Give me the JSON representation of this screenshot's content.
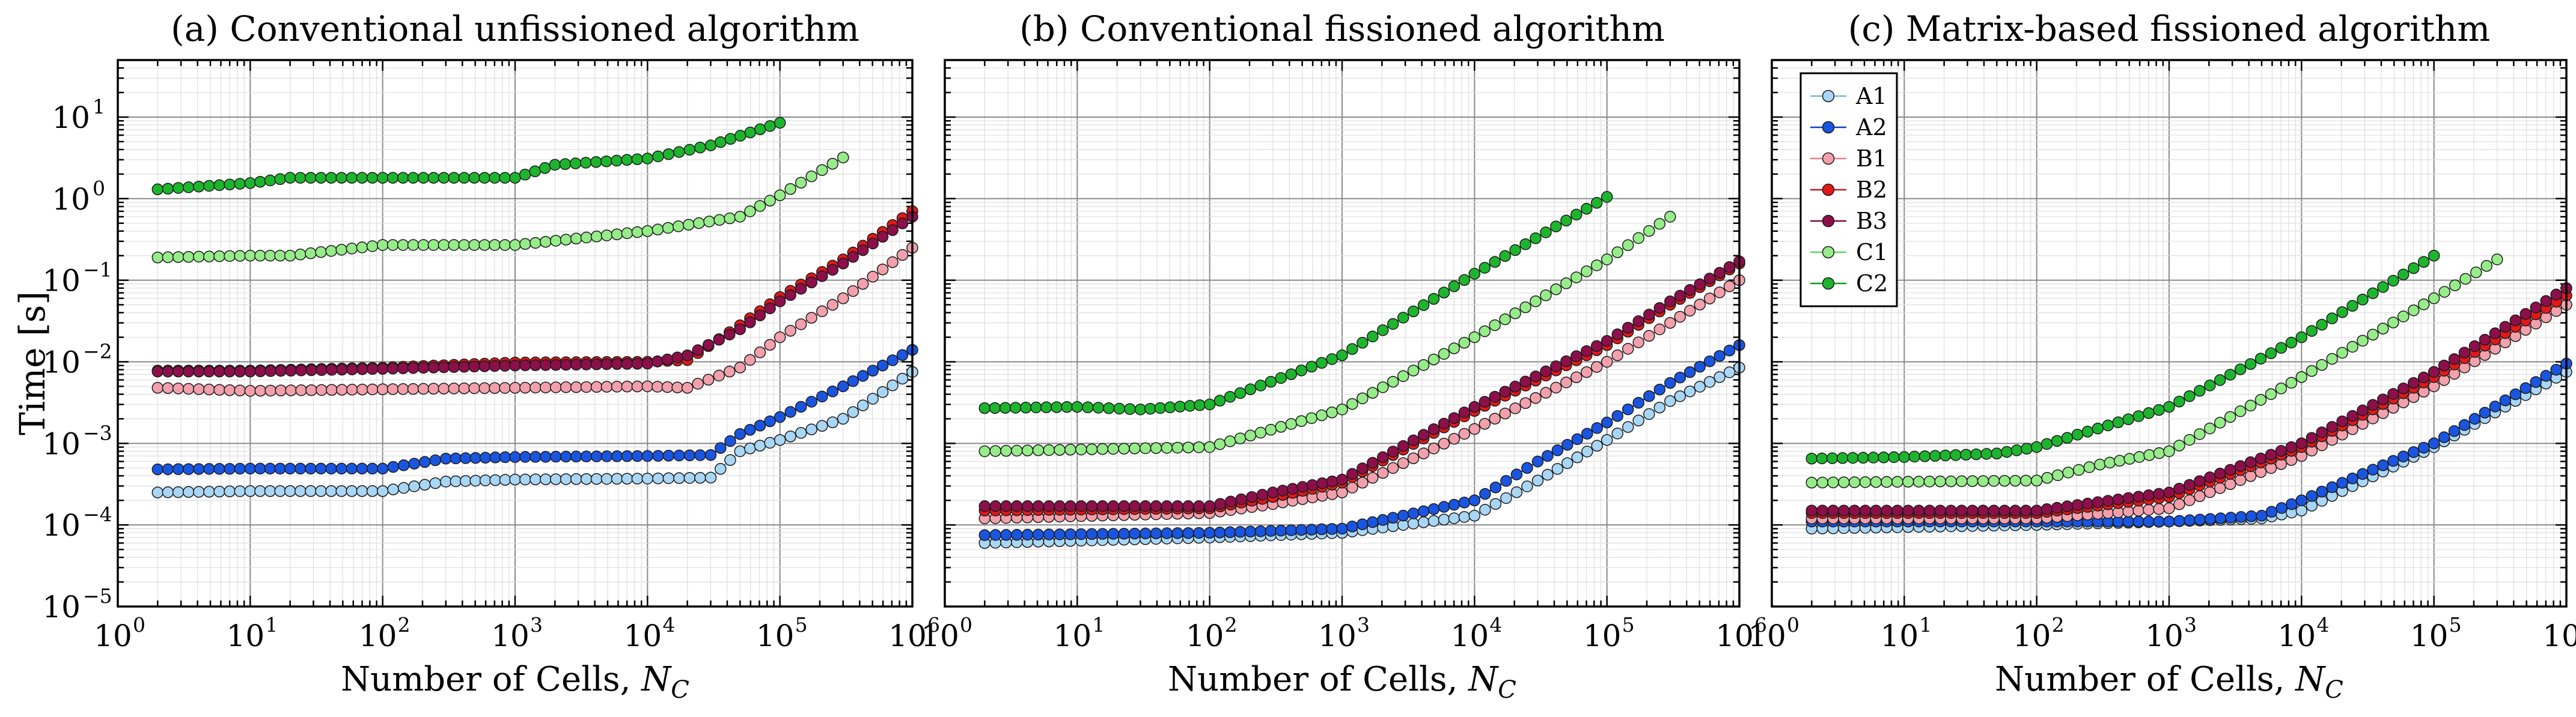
{
  "figure": {
    "ylabel": "Time [s]",
    "xlabel_prefix": "Number of Cells, ",
    "xlabel_symbol": "N",
    "xlabel_subscript": "C"
  },
  "chart_data": [
    {
      "type": "line",
      "title": "(a) Conventional unfissioned algorithm",
      "xscale": "log",
      "yscale": "log",
      "xlim": [
        1,
        1000000
      ],
      "ylim": [
        1e-05,
        50
      ],
      "grid": true,
      "series": [
        {
          "name": "A1",
          "x": [
            2,
            10,
            20,
            100,
            300,
            1000,
            10000,
            30000,
            50000,
            100000,
            300000,
            1000000
          ],
          "values": [
            0.00025,
            0.00026,
            0.00026,
            0.00026,
            0.00034,
            0.00036,
            0.00037,
            0.00038,
            0.0008,
            0.0011,
            0.002,
            0.0075
          ]
        },
        {
          "name": "A2",
          "x": [
            2,
            10,
            20,
            100,
            300,
            1000,
            10000,
            30000,
            50000,
            100000,
            300000,
            1000000
          ],
          "values": [
            0.00048,
            0.00049,
            0.00049,
            0.00049,
            0.00065,
            0.00068,
            0.0007,
            0.00072,
            0.0013,
            0.0021,
            0.005,
            0.014
          ]
        },
        {
          "name": "B1",
          "x": [
            2,
            10,
            100,
            1000,
            10000,
            20000,
            50000,
            100000,
            300000,
            1000000
          ],
          "values": [
            0.0048,
            0.0044,
            0.0046,
            0.0048,
            0.005,
            0.0048,
            0.0085,
            0.02,
            0.06,
            0.25
          ]
        },
        {
          "name": "B2",
          "x": [
            2,
            10,
            100,
            1000,
            10000,
            20000,
            50000,
            100000,
            300000,
            1000000
          ],
          "values": [
            0.0078,
            0.0078,
            0.0085,
            0.0098,
            0.01,
            0.0105,
            0.028,
            0.062,
            0.18,
            0.7
          ]
        },
        {
          "name": "B3",
          "x": [
            2,
            10,
            100,
            1000,
            10000,
            20000,
            50000,
            100000,
            300000,
            1000000
          ],
          "values": [
            0.0076,
            0.0076,
            0.0082,
            0.009,
            0.0095,
            0.012,
            0.025,
            0.055,
            0.16,
            0.6
          ]
        },
        {
          "name": "C1",
          "x": [
            2,
            10,
            20,
            100,
            1000,
            10000,
            50000,
            100000,
            300000
          ],
          "values": [
            0.19,
            0.2,
            0.2,
            0.27,
            0.27,
            0.4,
            0.6,
            1.1,
            3.2
          ]
        },
        {
          "name": "C2",
          "x": [
            2,
            10,
            20,
            100,
            1000,
            2000,
            10000,
            30000,
            100000
          ],
          "values": [
            1.3,
            1.55,
            1.8,
            1.8,
            1.8,
            2.6,
            3.1,
            4.5,
            8.5
          ]
        }
      ]
    },
    {
      "type": "line",
      "title": "(b) Conventional fissioned algorithm",
      "xscale": "log",
      "yscale": "log",
      "xlim": [
        1,
        1000000
      ],
      "ylim": [
        1e-05,
        50
      ],
      "grid": true,
      "series": [
        {
          "name": "A1",
          "x": [
            2,
            100,
            1000,
            10000,
            30000,
            100000,
            300000,
            1000000
          ],
          "values": [
            6e-05,
            7e-05,
            8e-05,
            0.00013,
            0.00035,
            0.0011,
            0.0033,
            0.0085
          ]
        },
        {
          "name": "A2",
          "x": [
            2,
            100,
            1000,
            10000,
            30000,
            100000,
            300000,
            1000000
          ],
          "values": [
            7.5e-05,
            8e-05,
            9e-05,
            0.0002,
            0.0006,
            0.0018,
            0.0055,
            0.016
          ]
        },
        {
          "name": "B1",
          "x": [
            2,
            100,
            300,
            1000,
            10000,
            100000,
            300000,
            1000000
          ],
          "values": [
            0.00012,
            0.00014,
            0.00018,
            0.00025,
            0.0015,
            0.01,
            0.03,
            0.1
          ]
        },
        {
          "name": "B2",
          "x": [
            2,
            100,
            300,
            1000,
            10000,
            100000,
            300000,
            1000000
          ],
          "values": [
            0.00015,
            0.00016,
            0.00022,
            0.00033,
            0.0025,
            0.016,
            0.05,
            0.16
          ]
        },
        {
          "name": "B3",
          "x": [
            2,
            100,
            300,
            1000,
            10000,
            100000,
            300000,
            1000000
          ],
          "values": [
            0.00017,
            0.00017,
            0.00025,
            0.00036,
            0.0028,
            0.018,
            0.055,
            0.17
          ]
        },
        {
          "name": "C1",
          "x": [
            2,
            100,
            1000,
            10000,
            100000,
            300000
          ],
          "values": [
            0.0008,
            0.0009,
            0.0026,
            0.02,
            0.18,
            0.6
          ]
        },
        {
          "name": "C2",
          "x": [
            2,
            10,
            30,
            100,
            1000,
            10000,
            100000
          ],
          "values": [
            0.0027,
            0.0028,
            0.0026,
            0.003,
            0.012,
            0.12,
            1.05
          ]
        }
      ]
    },
    {
      "type": "line",
      "title": "(c) Matrix-based fissioned algorithm",
      "xscale": "log",
      "yscale": "log",
      "xlim": [
        1,
        1000000
      ],
      "ylim": [
        1e-05,
        50
      ],
      "grid": true,
      "legend": "top-left",
      "series": [
        {
          "name": "A1",
          "x": [
            2,
            100,
            1000,
            5000,
            10000,
            100000,
            1000000
          ],
          "values": [
            9e-05,
            0.0001,
            0.00011,
            0.00012,
            0.00015,
            0.0009,
            0.0075
          ]
        },
        {
          "name": "A2",
          "x": [
            2,
            100,
            1000,
            5000,
            10000,
            100000,
            1000000
          ],
          "values": [
            0.00011,
            0.00011,
            0.00011,
            0.00013,
            0.0002,
            0.001,
            0.0095
          ]
        },
        {
          "name": "B1",
          "x": [
            2,
            100,
            1000,
            10000,
            100000,
            1000000
          ],
          "values": [
            0.00012,
            0.00012,
            0.00016,
            0.0007,
            0.005,
            0.05
          ]
        },
        {
          "name": "B2",
          "x": [
            2,
            100,
            1000,
            10000,
            100000,
            1000000
          ],
          "values": [
            0.00014,
            0.00014,
            0.00022,
            0.0009,
            0.0065,
            0.065
          ]
        },
        {
          "name": "B3",
          "x": [
            2,
            100,
            1000,
            10000,
            100000,
            1000000
          ],
          "values": [
            0.00015,
            0.00015,
            0.00025,
            0.001,
            0.0075,
            0.08
          ]
        },
        {
          "name": "C1",
          "x": [
            2,
            100,
            300,
            1000,
            10000,
            100000,
            300000
          ],
          "values": [
            0.00033,
            0.00035,
            0.00055,
            0.0008,
            0.0065,
            0.06,
            0.18
          ]
        },
        {
          "name": "C2",
          "x": [
            2,
            10,
            50,
            100,
            1000,
            10000,
            100000
          ],
          "values": [
            0.00065,
            0.00068,
            0.00075,
            0.0009,
            0.0028,
            0.02,
            0.2
          ]
        }
      ]
    }
  ],
  "colors": {
    "A1": {
      "line": "#6fb6e6",
      "face": "#a9d6f5"
    },
    "A2": {
      "line": "#0b3fc4",
      "face": "#1a55e0"
    },
    "B1": {
      "line": "#e87d8e",
      "face": "#f2a0ac"
    },
    "B2": {
      "line": "#cc1212",
      "face": "#e21818"
    },
    "B3": {
      "line": "#7a0a3c",
      "face": "#8c0f4a"
    },
    "C1": {
      "line": "#5fd65f",
      "face": "#97ec8a"
    },
    "C2": {
      "line": "#0f9a1f",
      "face": "#1eb52e"
    }
  }
}
